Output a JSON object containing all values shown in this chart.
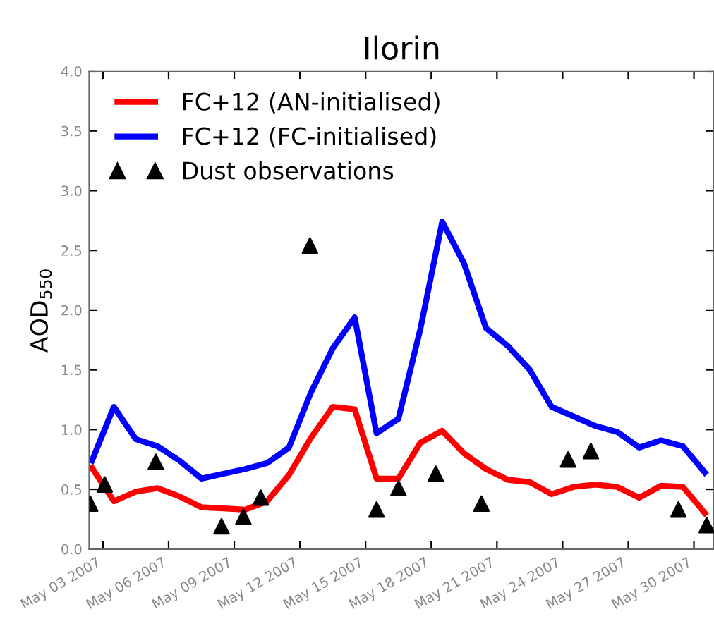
{
  "chart_data": {
    "type": "line",
    "title": "Ilorin",
    "ylabel": "AOD$_{550}$",
    "xlim": [
      "2007-05-02T09:00",
      "2007-05-30T22:00"
    ],
    "xticks": [
      {
        "value": "2007-05-03",
        "label": "May 03 2007"
      },
      {
        "value": "2007-05-06",
        "label": "May 06 2007"
      },
      {
        "value": "2007-05-09",
        "label": "May 09 2007"
      },
      {
        "value": "2007-05-12",
        "label": "May 12 2007"
      },
      {
        "value": "2007-05-15",
        "label": "May 15 2007"
      },
      {
        "value": "2007-05-18",
        "label": "May 18 2007"
      },
      {
        "value": "2007-05-21",
        "label": "May 21 2007"
      },
      {
        "value": "2007-05-24",
        "label": "May 24 2007"
      },
      {
        "value": "2007-05-27",
        "label": "May 27 2007"
      },
      {
        "value": "2007-05-30",
        "label": "May 30 2007"
      }
    ],
    "ylim": [
      0,
      4
    ],
    "yticks": [
      {
        "value": 0,
        "label": "0.0"
      },
      {
        "value": 0.5,
        "label": "0.5"
      },
      {
        "value": 1,
        "label": "1.0"
      },
      {
        "value": 1.5,
        "label": "1.5"
      },
      {
        "value": 2,
        "label": "2.0"
      },
      {
        "value": 2.5,
        "label": "2.5"
      },
      {
        "value": 3,
        "label": "3.0"
      },
      {
        "value": 3.5,
        "label": "3.5"
      },
      {
        "value": 4,
        "label": "4.0"
      }
    ],
    "x": [
      "2007-05-02T12:00",
      "2007-05-03T12:00",
      "2007-05-04T12:00",
      "2007-05-05T12:00",
      "2007-05-06T12:00",
      "2007-05-07T12:00",
      "2007-05-08T12:00",
      "2007-05-09T12:00",
      "2007-05-10T12:00",
      "2007-05-11T12:00",
      "2007-05-12T12:00",
      "2007-05-13T12:00",
      "2007-05-14T12:00",
      "2007-05-15T12:00",
      "2007-05-16T12:00",
      "2007-05-17T12:00",
      "2007-05-18T12:00",
      "2007-05-19T12:00",
      "2007-05-20T12:00",
      "2007-05-21T12:00",
      "2007-05-22T12:00",
      "2007-05-23T12:00",
      "2007-05-24T12:00",
      "2007-05-25T12:00",
      "2007-05-26T12:00",
      "2007-05-27T12:00",
      "2007-05-28T12:00",
      "2007-05-29T12:00",
      "2007-05-30T12:00"
    ],
    "series": [
      {
        "name": "FC+12 (AN-initialised)",
        "color": "#ff0000",
        "values": [
          0.68,
          0.4,
          0.48,
          0.51,
          0.44,
          0.35,
          0.34,
          0.33,
          0.4,
          0.62,
          0.93,
          1.19,
          1.17,
          0.59,
          0.59,
          0.89,
          0.99,
          0.8,
          0.67,
          0.58,
          0.56,
          0.46,
          0.52,
          0.54,
          0.52,
          0.43,
          0.53,
          0.52,
          0.3
        ]
      },
      {
        "name": "FC+12 (FC-initialised)",
        "color": "#0000ff",
        "values": [
          0.74,
          1.19,
          0.92,
          0.86,
          0.74,
          0.59,
          0.63,
          0.67,
          0.72,
          0.85,
          1.31,
          1.68,
          1.94,
          0.97,
          1.09,
          1.84,
          2.74,
          2.39,
          1.85,
          1.7,
          1.5,
          1.19,
          1.11,
          1.03,
          0.98,
          0.85,
          0.91,
          0.86,
          0.64
        ]
      },
      {
        "name": "Dust observations",
        "type": "scatter",
        "color": "#000000",
        "marker": "triangle",
        "x": [
          "2007-05-02T10:00",
          "2007-05-03T02:00",
          "2007-05-05T10:00",
          "2007-05-08T10:00",
          "2007-05-09T10:00",
          "2007-05-10T05:00",
          "2007-05-12T11:00",
          "2007-05-15T12:00",
          "2007-05-16T12:00",
          "2007-05-18T05:00",
          "2007-05-20T07:00",
          "2007-05-24T06:00",
          "2007-05-25T07:00",
          "2007-05-29T07:00",
          "2007-05-30T14:00"
        ],
        "values": [
          0.38,
          0.54,
          0.73,
          0.19,
          0.27,
          0.43,
          2.54,
          0.33,
          0.51,
          0.63,
          0.38,
          0.75,
          0.82,
          0.33,
          0.2
        ]
      }
    ],
    "legend": "top left"
  }
}
